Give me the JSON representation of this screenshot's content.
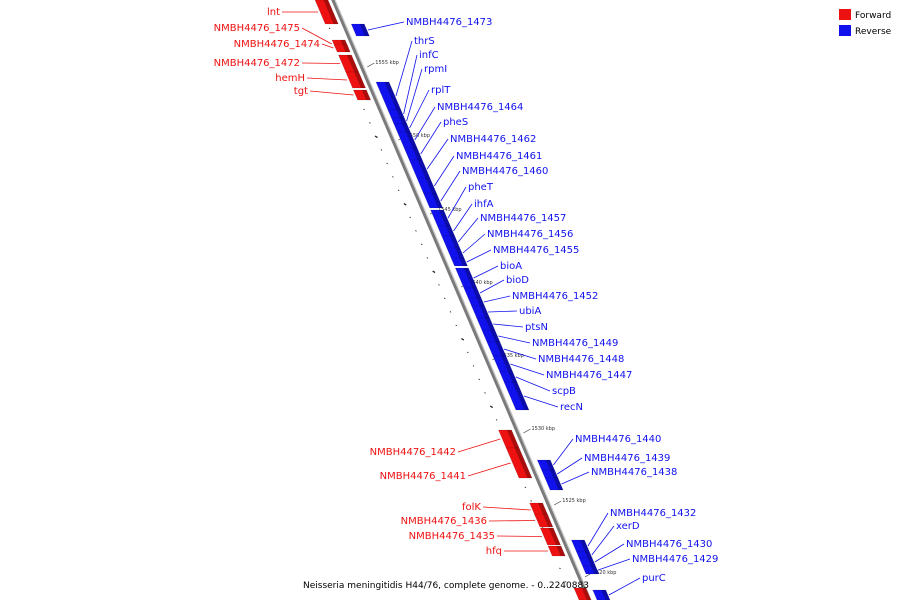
{
  "colors": {
    "forward": "#ee1111",
    "reverse": "#1111ee",
    "backbone": "#7a7a7a"
  },
  "legend": {
    "forward": "Forward",
    "reverse": "Reverse"
  },
  "caption": "Neisseria meningitidis H44/76, complete genome. - 0..2240883",
  "scale_ticks": [
    "1555 kbp",
    "1550 kbp",
    "1545 kbp",
    "1540 kbp",
    "1535 kbp",
    "1530 kbp",
    "1525 kbp",
    "1520 kbp"
  ],
  "forward_genes": [
    "lnt",
    "NMBH4476_1475",
    "NMBH4476_1474",
    "NMBH4476_1472",
    "hemH",
    "tgt",
    "NMBH4476_1442",
    "NMBH4476_1441",
    "folK",
    "NMBH4476_1436",
    "NMBH4476_1435",
    "hfq"
  ],
  "reverse_genes": [
    "NMBH4476_1473",
    "thrS",
    "infC",
    "rpmI",
    "rplT",
    "NMBH4476_1464",
    "pheS",
    "NMBH4476_1462",
    "NMBH4476_1461",
    "NMBH4476_1460",
    "pheT",
    "ihfA",
    "NMBH4476_1457",
    "NMBH4476_1456",
    "NMBH4476_1455",
    "bioA",
    "bioD",
    "NMBH4476_1452",
    "ubiA",
    "ptsN",
    "NMBH4476_1449",
    "NMBH4476_1448",
    "NMBH4476_1447",
    "scpB",
    "recN",
    "NMBH4476_1440",
    "NMBH4476_1439",
    "NMBH4476_1438",
    "NMBH4476_1432",
    "xerD",
    "NMBH4476_1430",
    "NMBH4476_1429",
    "purC"
  ]
}
